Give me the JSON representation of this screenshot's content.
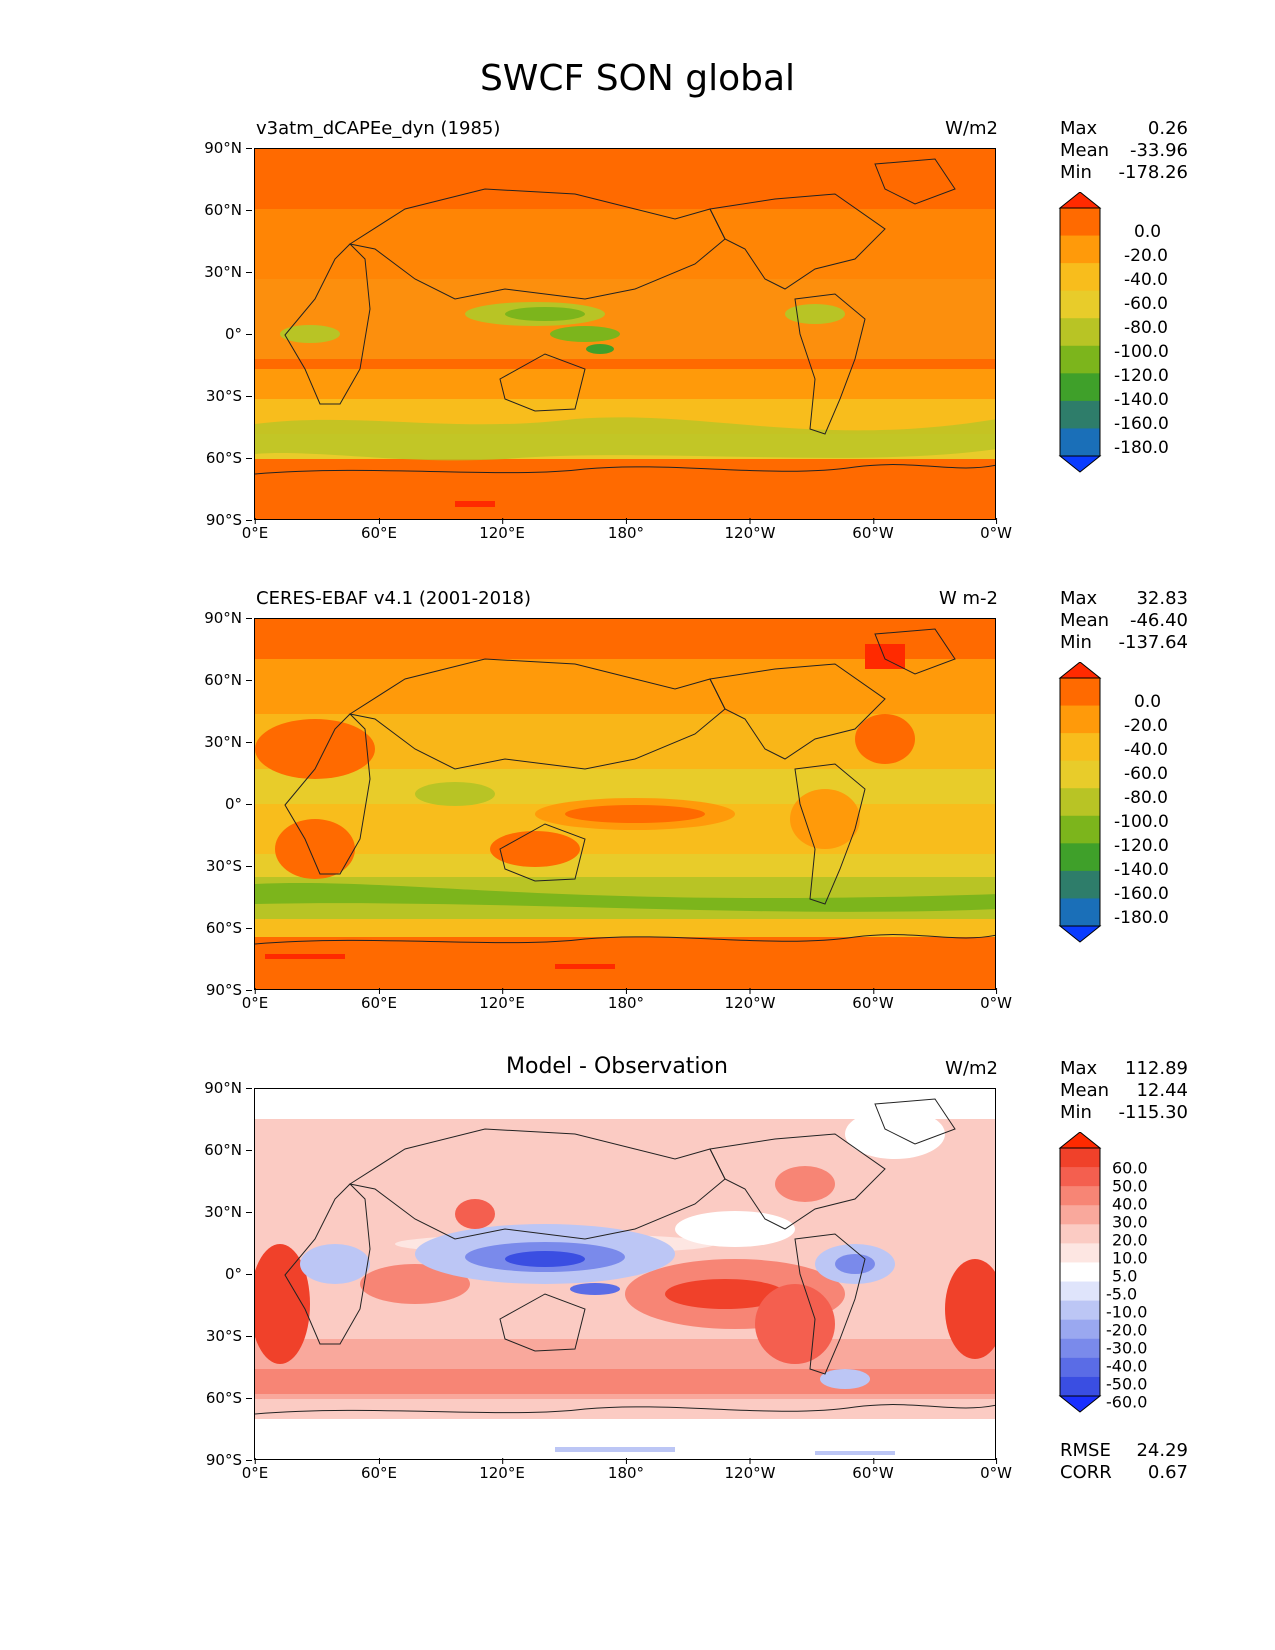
{
  "title": "SWCF SON global",
  "lat_ticks": [
    "90°N",
    "60°N",
    "30°N",
    "0°",
    "30°S",
    "60°S",
    "90°S"
  ],
  "lon_ticks": [
    "0°E",
    "60°E",
    "120°E",
    "180°",
    "120°W",
    "60°W",
    "0°W"
  ],
  "panels": [
    {
      "name": "model",
      "left_label": "v3atm_dCAPEe_dyn (1985)",
      "center_label": "",
      "units": "W/m2",
      "stats": {
        "max_label": "Max",
        "max": "0.26",
        "mean_label": "Mean",
        "mean": "-33.96",
        "min_label": "Min",
        "min": "-178.26"
      },
      "colorbar_labels": [
        "0.0",
        "-20.0",
        "-40.0",
        "-60.0",
        "-80.0",
        "-100.0",
        "-120.0",
        "-140.0",
        "-160.0",
        "-180.0"
      ]
    },
    {
      "name": "observation",
      "left_label": "CERES-EBAF v4.1 (2001-2018)",
      "center_label": "",
      "units": "W m-2",
      "stats": {
        "max_label": "Max",
        "max": "32.83",
        "mean_label": "Mean",
        "mean": "-46.40",
        "min_label": "Min",
        "min": "-137.64"
      },
      "colorbar_labels": [
        "0.0",
        "-20.0",
        "-40.0",
        "-60.0",
        "-80.0",
        "-100.0",
        "-120.0",
        "-140.0",
        "-160.0",
        "-180.0"
      ]
    },
    {
      "name": "difference",
      "left_label": "",
      "center_label": "Model - Observation",
      "units": "W/m2",
      "stats": {
        "max_label": "Max",
        "max": "112.89",
        "mean_label": "Mean",
        "mean": "12.44",
        "min_label": "Min",
        "min": "-115.30"
      },
      "colorbar_labels": [
        "60.0",
        "50.0",
        "40.0",
        "30.0",
        "20.0",
        "10.0",
        "5.0",
        "-5.0",
        "-10.0",
        "-20.0",
        "-30.0",
        "-40.0",
        "-50.0",
        "-60.0"
      ]
    }
  ],
  "rmse": {
    "label": "RMSE",
    "value": "24.29"
  },
  "corr": {
    "label": "CORR",
    "value": "0.67"
  },
  "colors": {
    "swcf_scale": [
      "#ff2a00",
      "#ff6a00",
      "#ff9a0a",
      "#f8bd1c",
      "#e8cc2a",
      "#b8c425",
      "#7cb51c",
      "#3fa02a",
      "#2e7d6a",
      "#1a6fb8",
      "#0a3cff"
    ],
    "diff_scale": [
      "#ff2a00",
      "#f0412a",
      "#f45f4f",
      "#f78575",
      "#f9a89c",
      "#fbcbc3",
      "#fde6e2",
      "#ffffff",
      "#dfe4fb",
      "#bcc6f5",
      "#9aa8f0",
      "#7a8aeb",
      "#5a6ce6",
      "#3a4ee2",
      "#1a2fff"
    ]
  }
}
